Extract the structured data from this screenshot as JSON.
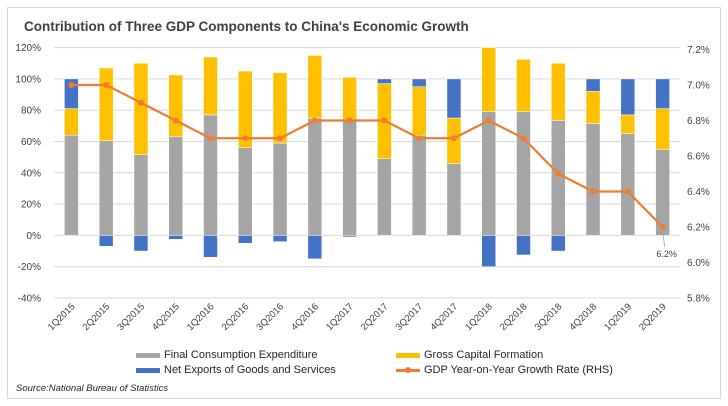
{
  "chart_data": {
    "type": "bar",
    "subtype": "stacked bar with line (secondary axis)",
    "title": "Contribution of Three GDP Components to China's Economic Growth",
    "categories": [
      "1Q2015",
      "2Q2015",
      "3Q2015",
      "4Q2015",
      "1Q2016",
      "2Q2016",
      "3Q2016",
      "4Q2016",
      "1Q2017",
      "2Q2017",
      "3Q2017",
      "4Q2017",
      "1Q2018",
      "2Q2018",
      "3Q2018",
      "4Q2018",
      "1Q2019",
      "2Q2019"
    ],
    "series": [
      {
        "name": "Final Consumption Expenditure",
        "type": "bar",
        "axis": "left",
        "color": "#a5a5a5",
        "values": [
          64,
          60.5,
          51.6,
          63,
          77,
          56,
          59,
          75,
          74,
          49,
          64,
          46,
          79,
          79,
          73.5,
          71.5,
          65,
          55
        ]
      },
      {
        "name": "Gross Capital Formation",
        "type": "bar",
        "axis": "left",
        "color": "#ffc000",
        "values": [
          17,
          46.5,
          58.4,
          39.5,
          37,
          49,
          45,
          40,
          27,
          48,
          31,
          29,
          41,
          33.5,
          36.5,
          20.5,
          12,
          26
        ]
      },
      {
        "name": "Net Exports of Goods and Services",
        "type": "bar",
        "axis": "left",
        "color": "#4472c4",
        "values": [
          19,
          -7,
          -10,
          -2.5,
          -14,
          -5,
          -4,
          -15,
          -1,
          3,
          5,
          25,
          -20,
          -12.5,
          -10,
          8,
          23,
          19
        ]
      },
      {
        "name": "GDP Year-on-Year Growth Rate (RHS)",
        "type": "line",
        "axis": "right",
        "color": "#ed7d31",
        "values": [
          7.0,
          7.0,
          6.9,
          6.8,
          6.7,
          6.7,
          6.7,
          6.8,
          6.8,
          6.8,
          6.7,
          6.7,
          6.8,
          6.7,
          6.5,
          6.4,
          6.4,
          6.2
        ]
      }
    ],
    "y_left": {
      "min": -40,
      "max": 120,
      "step": 20,
      "ticks": [
        "-40%",
        "-20%",
        "0%",
        "20%",
        "40%",
        "60%",
        "80%",
        "100%",
        "120%"
      ]
    },
    "y_right": {
      "min": 5.8,
      "max": 7.2,
      "step": 0.2,
      "ticks": [
        "5.8%",
        "6.0%",
        "6.2%",
        "6.4%",
        "6.6%",
        "6.8%",
        "7.0%",
        "7.2%"
      ]
    },
    "annotations": [
      {
        "category": "2Q2019",
        "series": "GDP Year-on-Year Growth Rate (RHS)",
        "text": "6.2%"
      }
    ],
    "xlabel": "",
    "ylabel": "",
    "grid": true,
    "legend_position": "bottom"
  },
  "legend": [
    {
      "label": "Final Consumption Expenditure",
      "color": "#a5a5a5",
      "kind": "bar"
    },
    {
      "label": "Gross Capital Formation",
      "color": "#ffc000",
      "kind": "bar"
    },
    {
      "label": "Net Exports of Goods and Services",
      "color": "#4472c4",
      "kind": "bar"
    },
    {
      "label": "GDP Year-on-Year Growth Rate (RHS)",
      "color": "#ed7d31",
      "kind": "line"
    }
  ],
  "source": "Source:National Bureau of Statistics"
}
